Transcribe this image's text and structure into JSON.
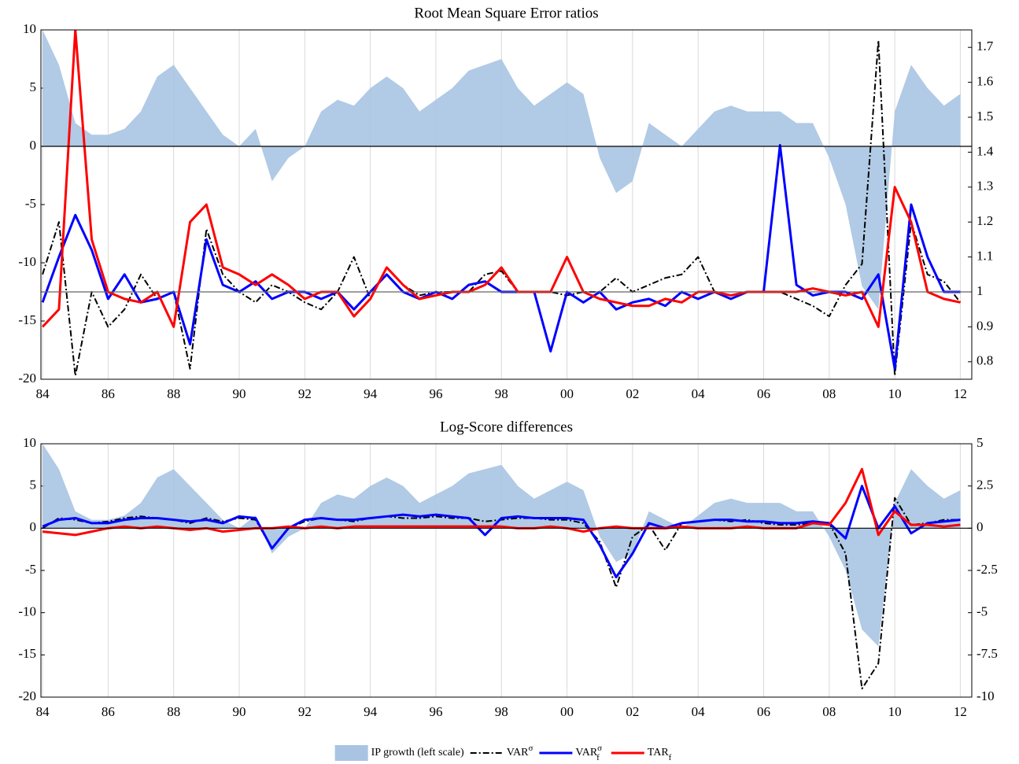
{
  "chart_data": [
    {
      "type": "line",
      "title": "Root Mean Square Error ratios",
      "x": [
        1984,
        1984.5,
        1985,
        1985.5,
        1986,
        1986.5,
        1987,
        1987.5,
        1988,
        1988.5,
        1989,
        1989.5,
        1990,
        1990.5,
        1991,
        1991.5,
        1992,
        1992.5,
        1993,
        1993.5,
        1994,
        1994.5,
        1995,
        1995.5,
        1996,
        1996.5,
        1997,
        1997.5,
        1998,
        1998.5,
        1999,
        1999.5,
        2000,
        2000.5,
        2001,
        2001.5,
        2002,
        2002.5,
        2003,
        2003.5,
        2004,
        2004.5,
        2005,
        2005.5,
        2006,
        2006.5,
        2007,
        2007.5,
        2008,
        2008.5,
        2009,
        2009.5,
        2010,
        2010.5,
        2011,
        2011.5,
        2012
      ],
      "xlim": [
        1983.95,
        2012.35
      ],
      "xticks": [
        {
          "value": 1984,
          "label": "84"
        },
        {
          "value": 1986,
          "label": "86"
        },
        {
          "value": 1988,
          "label": "88"
        },
        {
          "value": 1990,
          "label": "90"
        },
        {
          "value": 1992,
          "label": "92"
        },
        {
          "value": 1994,
          "label": "94"
        },
        {
          "value": 1996,
          "label": "96"
        },
        {
          "value": 1998,
          "label": "98"
        },
        {
          "value": 2000,
          "label": "00"
        },
        {
          "value": 2002,
          "label": "02"
        },
        {
          "value": 2004,
          "label": "04"
        },
        {
          "value": 2006,
          "label": "06"
        },
        {
          "value": 2008,
          "label": "08"
        },
        {
          "value": 2010,
          "label": "10"
        },
        {
          "value": 2012,
          "label": "12"
        }
      ],
      "ylim": [
        -20,
        10
      ],
      "yticks": [
        10,
        5,
        0,
        -5,
        -10,
        -15,
        -20
      ],
      "y2lim": [
        0.75,
        1.75
      ],
      "y2ticks": [
        0.8,
        0.9,
        1,
        1.1,
        1.2,
        1.3,
        1.4,
        1.5,
        1.6,
        1.7
      ],
      "hline_y2": 1,
      "grid": true,
      "series": [
        {
          "type": "area",
          "color": "#a9c4e2",
          "values": [
            10,
            7,
            2,
            1,
            1,
            1.5,
            3,
            6,
            7,
            5,
            3,
            1,
            0,
            1.5,
            -3,
            -1,
            0,
            3,
            4,
            3.5,
            5,
            6,
            5,
            3,
            4,
            5,
            6.5,
            7,
            7.5,
            5,
            3.5,
            4.5,
            5.5,
            4.5,
            -1,
            -4,
            -3,
            2,
            1,
            0,
            1.5,
            3,
            3.5,
            3,
            3,
            3,
            2,
            2,
            -1,
            -5,
            -12,
            -14,
            3,
            7,
            5,
            3.5,
            4.5
          ]
        },
        {
          "axis": "y2",
          "color": "#000000",
          "dash": true,
          "values": [
            1.05,
            1.2,
            0.76,
            1.0,
            0.9,
            0.95,
            1.05,
            0.98,
            1.0,
            0.78,
            1.18,
            1.05,
            1.0,
            0.97,
            1.02,
            1.0,
            0.97,
            0.95,
            1.0,
            1.1,
            0.98,
            1.07,
            1.02,
            0.99,
            1.0,
            1.0,
            1.0,
            1.05,
            1.06,
            1.0,
            1.0,
            1.0,
            0.99,
            1.0,
            1.0,
            1.04,
            1.0,
            1.02,
            1.04,
            1.05,
            1.1,
            1.0,
            0.98,
            1.0,
            1.0,
            1.0,
            0.98,
            0.96,
            0.93,
            1.02,
            1.08,
            1.72,
            0.76,
            1.2,
            1.05,
            1.03,
            0.97
          ]
        },
        {
          "axis": "y2",
          "color": "#0000ff",
          "values": [
            0.97,
            1.1,
            1.22,
            1.12,
            0.98,
            1.05,
            0.97,
            0.98,
            1.0,
            0.85,
            1.15,
            1.02,
            1.0,
            1.03,
            0.98,
            1.0,
            1.0,
            0.98,
            1.0,
            0.95,
            1.0,
            1.05,
            1.0,
            0.98,
            1.0,
            0.98,
            1.02,
            1.03,
            1.0,
            1.0,
            1.0,
            0.83,
            1.0,
            0.97,
            1.0,
            0.95,
            0.97,
            0.98,
            0.96,
            1.0,
            0.98,
            1.0,
            0.98,
            1.0,
            1.0,
            1.42,
            1.02,
            0.99,
            1.0,
            1.0,
            0.98,
            1.05,
            0.78,
            1.25,
            1.1,
            1.0,
            1.0
          ]
        },
        {
          "axis": "y2",
          "color": "#ff0000",
          "values": [
            0.9,
            0.95,
            1.75,
            1.15,
            1.0,
            0.98,
            0.97,
            1.0,
            0.9,
            1.2,
            1.25,
            1.07,
            1.05,
            1.02,
            1.05,
            1.02,
            0.98,
            1.0,
            1.0,
            0.93,
            0.98,
            1.07,
            1.02,
            0.98,
            0.99,
            1.0,
            1.0,
            1.02,
            1.07,
            1.0,
            1.0,
            1.0,
            1.1,
            1.0,
            0.98,
            0.97,
            0.96,
            0.96,
            0.98,
            0.97,
            1.0,
            1.0,
            0.99,
            1.0,
            1.0,
            1.0,
            1.0,
            1.01,
            1.0,
            0.99,
            1.0,
            0.9,
            1.3,
            1.2,
            1.0,
            0.98,
            0.97
          ]
        }
      ]
    },
    {
      "type": "line",
      "title": "Log-Score differences",
      "x": [
        1984,
        1984.5,
        1985,
        1985.5,
        1986,
        1986.5,
        1987,
        1987.5,
        1988,
        1988.5,
        1989,
        1989.5,
        1990,
        1990.5,
        1991,
        1991.5,
        1992,
        1992.5,
        1993,
        1993.5,
        1994,
        1994.5,
        1995,
        1995.5,
        1996,
        1996.5,
        1997,
        1997.5,
        1998,
        1998.5,
        1999,
        1999.5,
        2000,
        2000.5,
        2001,
        2001.5,
        2002,
        2002.5,
        2003,
        2003.5,
        2004,
        2004.5,
        2005,
        2005.5,
        2006,
        2006.5,
        2007,
        2007.5,
        2008,
        2008.5,
        2009,
        2009.5,
        2010,
        2010.5,
        2011,
        2011.5,
        2012
      ],
      "xlim": [
        1983.95,
        2012.35
      ],
      "xticks": [
        {
          "value": 1984,
          "label": "84"
        },
        {
          "value": 1986,
          "label": "86"
        },
        {
          "value": 1988,
          "label": "88"
        },
        {
          "value": 1990,
          "label": "90"
        },
        {
          "value": 1992,
          "label": "92"
        },
        {
          "value": 1994,
          "label": "94"
        },
        {
          "value": 1996,
          "label": "96"
        },
        {
          "value": 1998,
          "label": "98"
        },
        {
          "value": 2000,
          "label": "00"
        },
        {
          "value": 2002,
          "label": "02"
        },
        {
          "value": 2004,
          "label": "04"
        },
        {
          "value": 2006,
          "label": "06"
        },
        {
          "value": 2008,
          "label": "08"
        },
        {
          "value": 2010,
          "label": "10"
        },
        {
          "value": 2012,
          "label": "12"
        }
      ],
      "ylim": [
        -20,
        10
      ],
      "yticks": [
        10,
        5,
        0,
        -5,
        -10,
        -15,
        -20
      ],
      "y2lim": [
        -10,
        5
      ],
      "y2ticks": [
        5,
        2.5,
        0,
        -2.5,
        -5,
        -7.5,
        -10
      ],
      "grid": true,
      "legend": "bottom",
      "series": [
        {
          "type": "area",
          "name": "IP growth (left scale)",
          "color": "#a9c4e2",
          "values": [
            10,
            7,
            2,
            1,
            1,
            1.5,
            3,
            6,
            7,
            5,
            3,
            1,
            0,
            1.5,
            -3,
            -1,
            0,
            3,
            4,
            3.5,
            5,
            6,
            5,
            3,
            4,
            5,
            6.5,
            7,
            7.5,
            5,
            3.5,
            4.5,
            5.5,
            4.5,
            -1,
            -4,
            -3,
            2,
            1,
            0,
            1.5,
            3,
            3.5,
            3,
            3,
            3,
            2,
            2,
            -1,
            -5,
            -12,
            -14,
            3,
            7,
            5,
            3.5,
            4.5
          ]
        },
        {
          "axis": "y2",
          "name": "VAR",
          "superscript": "σ",
          "color": "#000000",
          "dash": true,
          "values": [
            0,
            0.6,
            0.5,
            0.3,
            0.4,
            0.6,
            0.7,
            0.6,
            0.5,
            0.3,
            0.6,
            0.4,
            0.6,
            0.5,
            -1.2,
            0,
            0.4,
            0.6,
            0.5,
            0.4,
            0.6,
            0.7,
            0.6,
            0.6,
            0.7,
            0.6,
            0.6,
            0.4,
            0.5,
            0.6,
            0.6,
            0.5,
            0.5,
            0.3,
            -0.8,
            -3.5,
            -0.5,
            0.2,
            -1.3,
            0.3,
            0.4,
            0.5,
            0.4,
            0.5,
            0.3,
            0.2,
            0.2,
            0.3,
            0.3,
            -1.5,
            -9.5,
            -8,
            1.8,
            0.2,
            0.3,
            0.5,
            0.5
          ]
        },
        {
          "axis": "y2",
          "name": "VAR",
          "superscript": "σ",
          "subscript": "f",
          "color": "#0000ff",
          "values": [
            0.1,
            0.5,
            0.6,
            0.3,
            0.3,
            0.5,
            0.6,
            0.6,
            0.5,
            0.4,
            0.5,
            0.3,
            0.7,
            0.6,
            -1.2,
            0,
            0.5,
            0.6,
            0.5,
            0.5,
            0.6,
            0.7,
            0.8,
            0.7,
            0.8,
            0.7,
            0.6,
            -0.4,
            0.6,
            0.7,
            0.6,
            0.6,
            0.6,
            0.5,
            -1.0,
            -2.9,
            -1.5,
            0.3,
            0,
            0.3,
            0.4,
            0.5,
            0.5,
            0.4,
            0.4,
            0.3,
            0.3,
            0.4,
            0.3,
            -0.6,
            2.5,
            0,
            1.3,
            -0.3,
            0.3,
            0.4,
            0.5
          ]
        },
        {
          "axis": "y2",
          "name": "TAR",
          "subscript": "f",
          "color": "#ff0000",
          "values": [
            -0.2,
            -0.3,
            -0.4,
            -0.2,
            0,
            0.1,
            0,
            0.1,
            0,
            -0.1,
            0,
            -0.2,
            -0.1,
            0,
            0,
            0.1,
            0,
            0.1,
            0,
            0.1,
            0.1,
            0.1,
            0.1,
            0.1,
            0.1,
            0.1,
            0.1,
            0.1,
            0.1,
            0,
            0,
            0.1,
            0,
            -0.2,
            0,
            0.1,
            0,
            0,
            0,
            0.1,
            0,
            0,
            0,
            0.1,
            0,
            0,
            0,
            0.3,
            0.2,
            1.5,
            3.5,
            -0.4,
            1.0,
            0.2,
            0.2,
            0.1,
            0.2
          ]
        }
      ]
    }
  ]
}
